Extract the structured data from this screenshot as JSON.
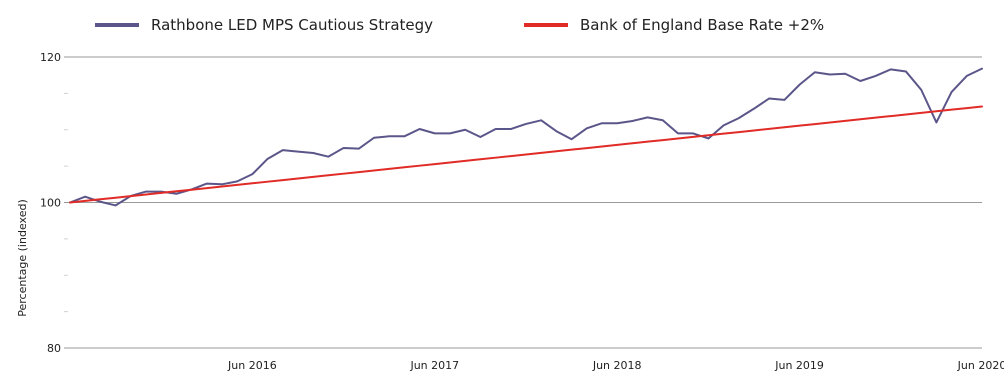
{
  "chart_data": {
    "type": "line",
    "title": "",
    "xlabel": "",
    "ylabel": "Percentage (indexed)",
    "ylim": [
      80,
      120
    ],
    "yticks": [
      80,
      100,
      120
    ],
    "xlim": [
      "2015-06",
      "2020-06"
    ],
    "xticks": [
      {
        "value": "2016-06",
        "label": "Jun 2016"
      },
      {
        "value": "2017-06",
        "label": "Jun 2017"
      },
      {
        "value": "2018-06",
        "label": "Jun 2018"
      },
      {
        "value": "2019-06",
        "label": "Jun 2019"
      },
      {
        "value": "2020-06",
        "label": "Jun 2020"
      }
    ],
    "grid": "horizontal-major",
    "legend_placement": "top",
    "x": [
      "2015-06",
      "2015-07",
      "2015-08",
      "2015-09",
      "2015-10",
      "2015-11",
      "2015-12",
      "2016-01",
      "2016-02",
      "2016-03",
      "2016-04",
      "2016-05",
      "2016-06",
      "2016-07",
      "2016-08",
      "2016-09",
      "2016-10",
      "2016-11",
      "2016-12",
      "2017-01",
      "2017-02",
      "2017-03",
      "2017-04",
      "2017-05",
      "2017-06",
      "2017-07",
      "2017-08",
      "2017-09",
      "2017-10",
      "2017-11",
      "2017-12",
      "2018-01",
      "2018-02",
      "2018-03",
      "2018-04",
      "2018-05",
      "2018-06",
      "2018-07",
      "2018-08",
      "2018-09",
      "2018-10",
      "2018-11",
      "2018-12",
      "2019-01",
      "2019-02",
      "2019-03",
      "2019-04",
      "2019-05",
      "2019-06",
      "2019-07",
      "2019-08",
      "2019-09",
      "2019-10",
      "2019-11",
      "2019-12",
      "2020-01",
      "2020-02",
      "2020-03",
      "2020-04",
      "2020-05",
      "2020-06"
    ],
    "series": [
      {
        "name": "Rathbone LED MPS Cautious Strategy",
        "color": "#5b5689",
        "values": [
          100.0,
          100.8,
          100.1,
          99.6,
          100.9,
          101.5,
          101.5,
          101.2,
          101.8,
          102.6,
          102.5,
          102.9,
          103.9,
          106.0,
          107.2,
          107.0,
          106.8,
          106.3,
          107.5,
          107.4,
          108.9,
          109.1,
          109.1,
          110.1,
          109.5,
          109.5,
          110.0,
          109.0,
          110.1,
          110.1,
          110.8,
          111.3,
          109.8,
          108.7,
          110.2,
          110.9,
          110.9,
          111.2,
          111.7,
          111.3,
          109.5,
          109.5,
          108.8,
          110.6,
          111.6,
          112.9,
          114.3,
          114.1,
          116.2,
          117.9,
          117.6,
          117.7,
          116.7,
          117.4,
          118.3,
          118.0,
          115.5,
          111.0,
          115.2,
          117.4,
          118.4
        ]
      },
      {
        "name": "Bank of England Base Rate +2%",
        "color": "#e02b27",
        "values": [
          100.0,
          100.22,
          100.44,
          100.66,
          100.88,
          101.1,
          101.32,
          101.54,
          101.76,
          101.98,
          102.2,
          102.42,
          102.64,
          102.86,
          103.08,
          103.3,
          103.52,
          103.74,
          103.96,
          104.18,
          104.4,
          104.62,
          104.84,
          105.06,
          105.28,
          105.5,
          105.72,
          105.94,
          106.16,
          106.38,
          106.6,
          106.82,
          107.04,
          107.26,
          107.48,
          107.7,
          107.92,
          108.14,
          108.36,
          108.58,
          108.8,
          109.02,
          109.24,
          109.46,
          109.68,
          109.9,
          110.12,
          110.34,
          110.56,
          110.78,
          111.0,
          111.22,
          111.44,
          111.66,
          111.88,
          112.1,
          112.32,
          112.54,
          112.76,
          112.98,
          113.2
        ]
      }
    ]
  }
}
